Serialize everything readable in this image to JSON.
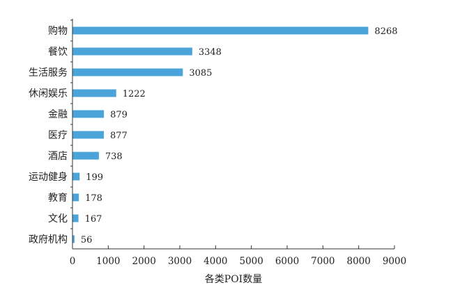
{
  "chart_data": {
    "type": "bar",
    "orientation": "horizontal",
    "categories": [
      "购物",
      "餐饮",
      "生活服务",
      "休闲娱乐",
      "金融",
      "医疗",
      "酒店",
      "运动健身",
      "教育",
      "文化",
      "政府机构"
    ],
    "values": [
      8268,
      3348,
      3085,
      1222,
      879,
      877,
      738,
      199,
      178,
      167,
      56
    ],
    "xlabel": "各类POI数量",
    "ylabel": "",
    "xlim": [
      0,
      9000
    ],
    "xticks": [
      0,
      1000,
      2000,
      3000,
      4000,
      5000,
      6000,
      7000,
      8000,
      9000
    ],
    "bar_color": "#4aa3d9",
    "grid": false,
    "data_labels": true
  }
}
